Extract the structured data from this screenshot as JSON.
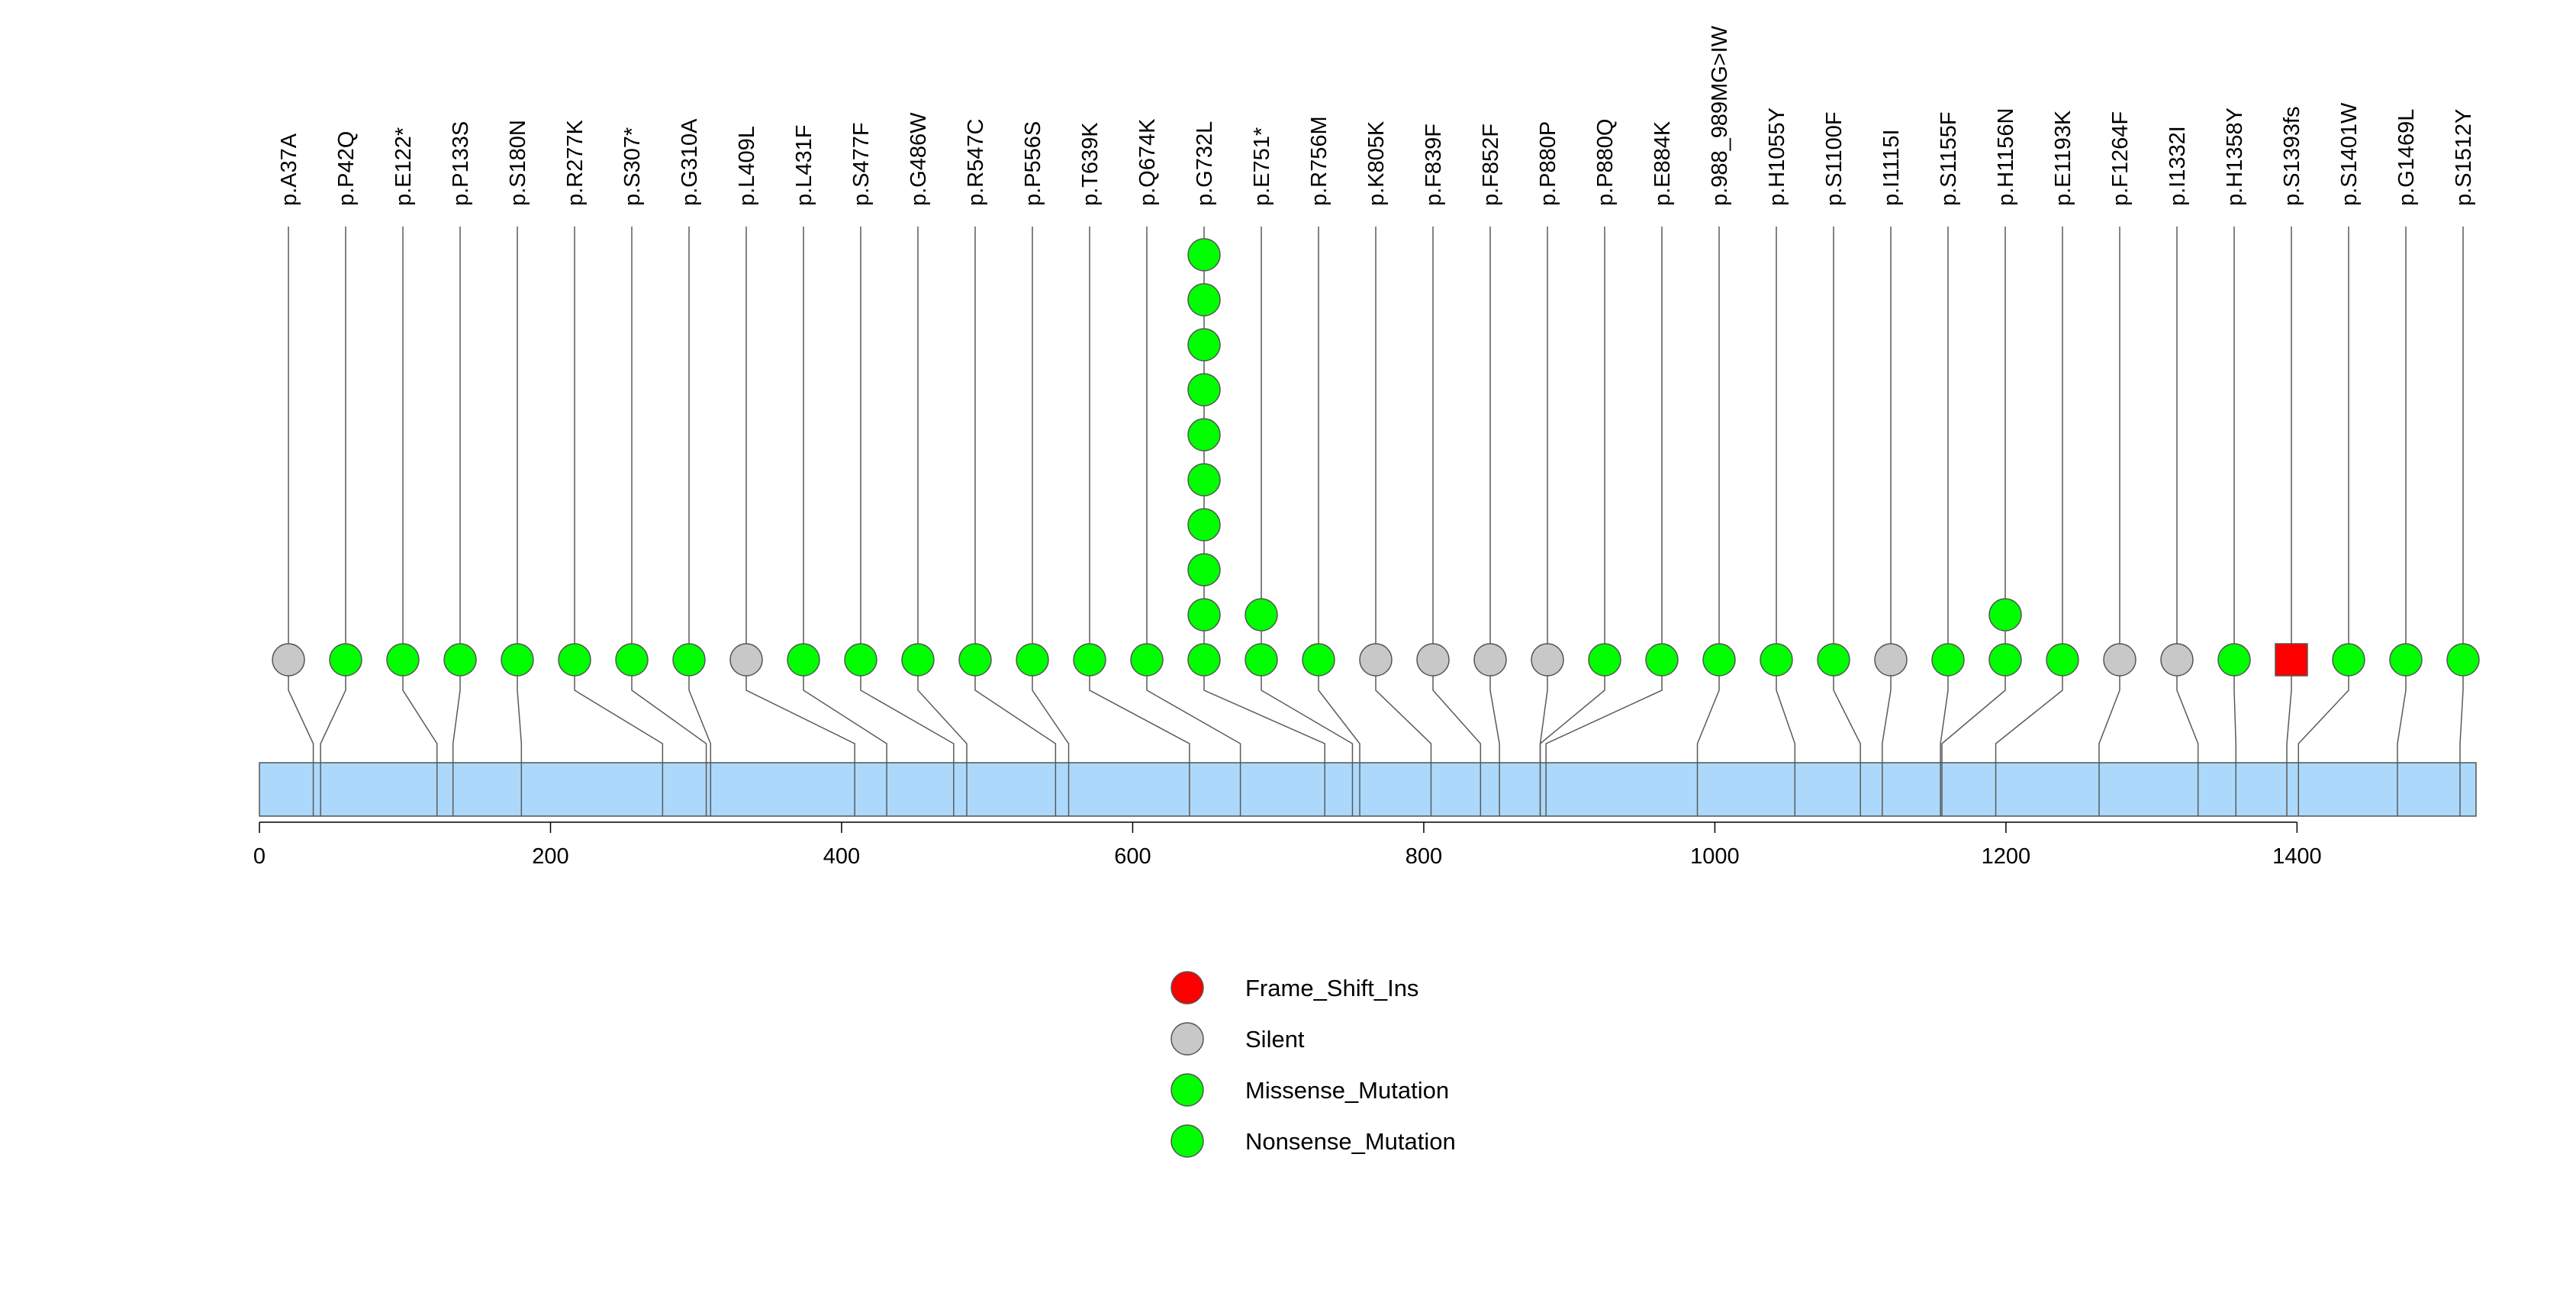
{
  "chart_data": {
    "type": "lollipop",
    "protein_length": 1523,
    "x_ticks": [
      0,
      200,
      400,
      600,
      800,
      1000,
      1200,
      1400
    ],
    "colors": {
      "Frame_Shift_Ins": "#ff0000",
      "Silent": "#c8c8c8",
      "Missense_Mutation": "#00ff00",
      "Nonsense_Mutation": "#00ff00",
      "domain": "#acd9fb",
      "stem": "#5a5a5a",
      "stroke": "#555555"
    },
    "legend": {
      "placement": "bottom-center",
      "items": [
        {
          "label": "Frame_Shift_Ins",
          "color": "#ff0000"
        },
        {
          "label": "Silent",
          "color": "#c8c8c8"
        },
        {
          "label": "Missense_Mutation",
          "color": "#00ff00"
        },
        {
          "label": "Nonsense_Mutation",
          "color": "#00ff00"
        }
      ]
    },
    "mutations": [
      {
        "label": "p.A37A",
        "pos": 37,
        "count": 1,
        "type": "Silent"
      },
      {
        "label": "p.P42Q",
        "pos": 42,
        "count": 1,
        "type": "Missense_Mutation"
      },
      {
        "label": "p.E122*",
        "pos": 122,
        "count": 1,
        "type": "Nonsense_Mutation"
      },
      {
        "label": "p.P133S",
        "pos": 133,
        "count": 1,
        "type": "Missense_Mutation"
      },
      {
        "label": "p.S180N",
        "pos": 180,
        "count": 1,
        "type": "Missense_Mutation"
      },
      {
        "label": "p.R277K",
        "pos": 277,
        "count": 1,
        "type": "Missense_Mutation"
      },
      {
        "label": "p.S307*",
        "pos": 307,
        "count": 1,
        "type": "Nonsense_Mutation"
      },
      {
        "label": "p.G310A",
        "pos": 310,
        "count": 1,
        "type": "Missense_Mutation"
      },
      {
        "label": "p.L409L",
        "pos": 409,
        "count": 1,
        "type": "Silent"
      },
      {
        "label": "p.L431F",
        "pos": 431,
        "count": 1,
        "type": "Missense_Mutation"
      },
      {
        "label": "p.S477F",
        "pos": 477,
        "count": 1,
        "type": "Missense_Mutation"
      },
      {
        "label": "p.G486W",
        "pos": 486,
        "count": 1,
        "type": "Missense_Mutation"
      },
      {
        "label": "p.R547C",
        "pos": 547,
        "count": 1,
        "type": "Missense_Mutation"
      },
      {
        "label": "p.P556S",
        "pos": 556,
        "count": 1,
        "type": "Missense_Mutation"
      },
      {
        "label": "p.T639K",
        "pos": 639,
        "count": 1,
        "type": "Missense_Mutation"
      },
      {
        "label": "p.Q674K",
        "pos": 674,
        "count": 1,
        "type": "Missense_Mutation"
      },
      {
        "label": "p.G732L",
        "pos": 732,
        "count": 10,
        "type": "Missense_Mutation"
      },
      {
        "label": "p.E751*",
        "pos": 751,
        "count": 2,
        "type": "Nonsense_Mutation"
      },
      {
        "label": "p.R756M",
        "pos": 756,
        "count": 1,
        "type": "Missense_Mutation"
      },
      {
        "label": "p.K805K",
        "pos": 805,
        "count": 1,
        "type": "Silent"
      },
      {
        "label": "p.F839F",
        "pos": 839,
        "count": 1,
        "type": "Silent"
      },
      {
        "label": "p.F852F",
        "pos": 852,
        "count": 1,
        "type": "Silent"
      },
      {
        "label": "p.P880P",
        "pos": 880,
        "count": 1,
        "type": "Silent"
      },
      {
        "label": "p.P880Q",
        "pos": 880,
        "count": 1,
        "type": "Missense_Mutation"
      },
      {
        "label": "p.E884K",
        "pos": 884,
        "count": 1,
        "type": "Missense_Mutation"
      },
      {
        "label": "p.988_989MG>IW",
        "pos": 988,
        "count": 1,
        "type": "Missense_Mutation"
      },
      {
        "label": "p.H1055Y",
        "pos": 1055,
        "count": 1,
        "type": "Missense_Mutation"
      },
      {
        "label": "p.S1100F",
        "pos": 1100,
        "count": 1,
        "type": "Missense_Mutation"
      },
      {
        "label": "p.I1115I",
        "pos": 1115,
        "count": 1,
        "type": "Silent"
      },
      {
        "label": "p.S1155F",
        "pos": 1155,
        "count": 1,
        "type": "Missense_Mutation"
      },
      {
        "label": "p.H1156N",
        "pos": 1156,
        "count": 2,
        "type": "Missense_Mutation"
      },
      {
        "label": "p.E1193K",
        "pos": 1193,
        "count": 1,
        "type": "Missense_Mutation"
      },
      {
        "label": "p.F1264F",
        "pos": 1264,
        "count": 1,
        "type": "Silent"
      },
      {
        "label": "p.I1332I",
        "pos": 1332,
        "count": 1,
        "type": "Silent"
      },
      {
        "label": "p.H1358Y",
        "pos": 1358,
        "count": 1,
        "type": "Missense_Mutation"
      },
      {
        "label": "p.S1393fs",
        "pos": 1393,
        "count": 1,
        "type": "Frame_Shift_Ins"
      },
      {
        "label": "p.S1401W",
        "pos": 1401,
        "count": 1,
        "type": "Missense_Mutation"
      },
      {
        "label": "p.G1469L",
        "pos": 1469,
        "count": 1,
        "type": "Missense_Mutation"
      },
      {
        "label": "p.S1512Y",
        "pos": 1512,
        "count": 1,
        "type": "Missense_Mutation"
      }
    ]
  }
}
